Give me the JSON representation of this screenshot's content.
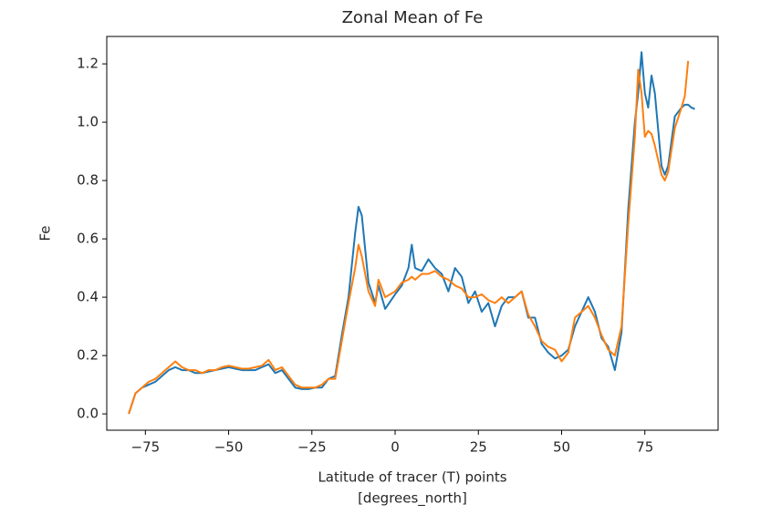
{
  "chart_data": {
    "type": "line",
    "title": "Zonal Mean of Fe",
    "xlabel": [
      "Latitude of tracer (T) points",
      "[degrees_north]"
    ],
    "ylabel": "Fe",
    "x": [
      -80,
      -78,
      -76,
      -74,
      -72,
      -70,
      -68,
      -66,
      -64,
      -62,
      -60,
      -58,
      -56,
      -54,
      -52,
      -50,
      -48,
      -46,
      -44,
      -42,
      -40,
      -38,
      -36,
      -34,
      -32,
      -30,
      -28,
      -26,
      -24,
      -22,
      -20,
      -18,
      -16,
      -14,
      -12,
      -11,
      -10,
      -8,
      -6,
      -5,
      -3,
      0,
      2,
      4,
      5,
      6,
      8,
      10,
      12,
      14,
      16,
      18,
      20,
      22,
      24,
      26,
      28,
      30,
      32,
      34,
      36,
      38,
      40,
      42,
      44,
      46,
      48,
      50,
      52,
      54,
      56,
      58,
      60,
      62,
      64,
      66,
      68,
      70,
      72,
      73,
      74,
      75,
      76,
      77,
      78,
      80,
      81,
      82,
      84,
      86,
      87,
      88,
      89,
      90
    ],
    "series": [
      {
        "color": "#1f77b4",
        "values": [
          0.0,
          0.07,
          0.09,
          0.1,
          0.11,
          0.13,
          0.15,
          0.16,
          0.15,
          0.15,
          0.14,
          0.14,
          0.145,
          0.15,
          0.155,
          0.16,
          0.155,
          0.15,
          0.15,
          0.15,
          0.16,
          0.17,
          0.14,
          0.15,
          0.12,
          0.09,
          0.085,
          0.085,
          0.09,
          0.09,
          0.12,
          0.13,
          0.27,
          0.4,
          0.62,
          0.71,
          0.68,
          0.45,
          0.38,
          0.44,
          0.36,
          0.41,
          0.44,
          0.5,
          0.58,
          0.5,
          0.49,
          0.53,
          0.5,
          0.48,
          0.42,
          0.5,
          0.47,
          0.38,
          0.42,
          0.35,
          0.38,
          0.3,
          0.37,
          0.4,
          0.4,
          0.42,
          0.33,
          0.33,
          0.24,
          0.21,
          0.19,
          0.2,
          0.22,
          0.3,
          0.35,
          0.4,
          0.35,
          0.26,
          0.23,
          0.15,
          0.28,
          0.7,
          1.0,
          1.1,
          1.24,
          1.1,
          1.05,
          1.16,
          1.1,
          0.85,
          0.82,
          0.85,
          1.02,
          1.05,
          1.06,
          1.06,
          1.05,
          1.045
        ]
      },
      {
        "color": "#ff7f0e",
        "values": [
          0.0,
          0.07,
          0.09,
          0.11,
          0.12,
          0.14,
          0.16,
          0.18,
          0.16,
          0.15,
          0.15,
          0.14,
          0.15,
          0.15,
          0.16,
          0.165,
          0.16,
          0.155,
          0.155,
          0.16,
          0.165,
          0.185,
          0.15,
          0.16,
          0.13,
          0.1,
          0.09,
          0.09,
          0.09,
          0.1,
          0.12,
          0.12,
          0.25,
          0.38,
          0.5,
          0.58,
          0.54,
          0.42,
          0.37,
          0.46,
          0.4,
          0.42,
          0.45,
          0.46,
          0.47,
          0.46,
          0.48,
          0.48,
          0.49,
          0.47,
          0.46,
          0.44,
          0.43,
          0.4,
          0.4,
          0.41,
          0.39,
          0.38,
          0.4,
          0.38,
          0.4,
          0.42,
          0.34,
          0.3,
          0.25,
          0.23,
          0.22,
          0.18,
          0.21,
          0.33,
          0.35,
          0.37,
          0.33,
          0.27,
          0.22,
          0.2,
          0.3,
          0.65,
          0.95,
          1.18,
          1.1,
          0.95,
          0.97,
          0.96,
          0.92,
          0.82,
          0.8,
          0.83,
          0.98,
          1.05,
          1.09,
          1.21,
          null,
          null
        ]
      }
    ],
    "xlim": [
      -86.6,
      97
    ],
    "xticks": [
      {
        "value": -75,
        "label": "−75"
      },
      {
        "value": -50,
        "label": "−50"
      },
      {
        "value": -25,
        "label": "−25"
      },
      0,
      25,
      50,
      75
    ],
    "ylim": [
      -0.056,
      1.294
    ],
    "yticks": [
      {
        "value": 0,
        "label": "0.0"
      },
      0.2,
      0.4,
      0.6,
      0.8,
      {
        "value": 1,
        "label": "1.0"
      },
      1.2
    ],
    "grid": false
  }
}
